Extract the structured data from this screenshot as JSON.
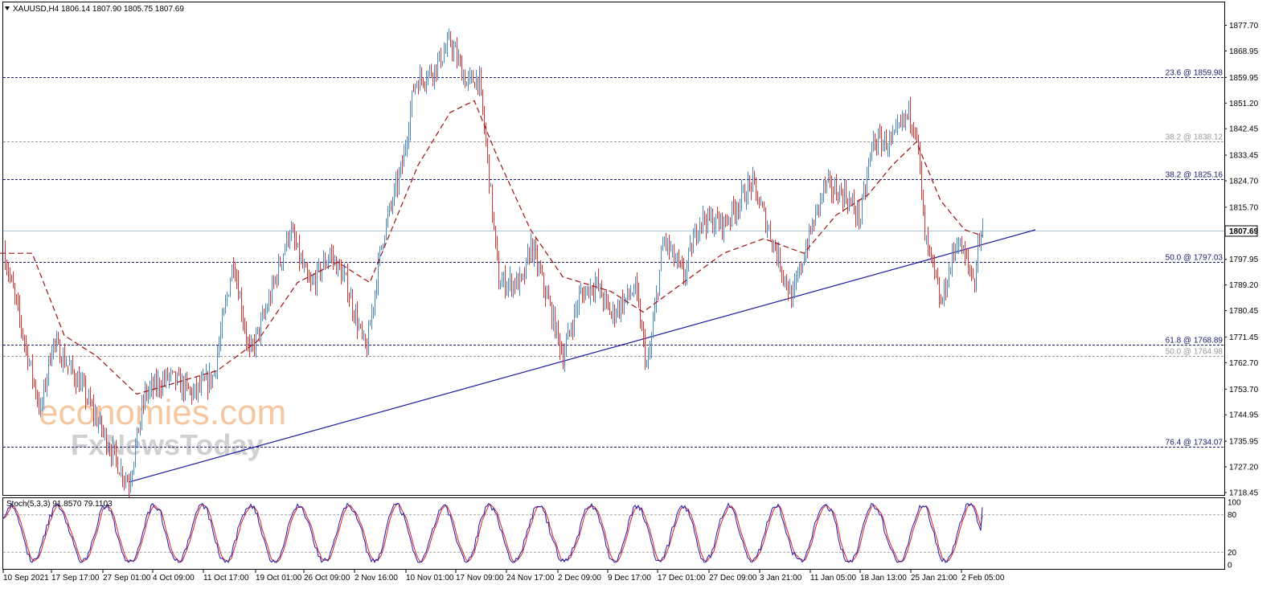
{
  "header": {
    "symbol": "XAUUSD,H4",
    "ohlc": "1806.14 1807.90 1805.75 1807.69"
  },
  "watermark": {
    "line1": "economies.com",
    "line2": "FxNewsToday"
  },
  "price_scale": {
    "ticks": [
      "1877.70",
      "1868.95",
      "1859.95",
      "1851.20",
      "1842.45",
      "1833.45",
      "1824.70",
      "1815.70",
      "1807.69",
      "1797.95",
      "1789.20",
      "1780.45",
      "1771.45",
      "1762.70",
      "1753.70",
      "1744.95",
      "1735.95",
      "1727.20",
      "1718.45"
    ],
    "current_price_label": "1807.69"
  },
  "time_axis": {
    "labels": [
      "10 Sep 2021",
      "17 Sep 17:00",
      "27 Sep 01:00",
      "4 Oct 09:00",
      "11 Oct 17:00",
      "19 Oct 01:00",
      "26 Oct 09:00",
      "2 Nov 16:00",
      "10 Nov 01:00",
      "17 Nov 09:00",
      "24 Nov 17:00",
      "2 Dec 09:00",
      "9 Dec 17:00",
      "17 Dec 01:00",
      "27 Dec 09:00",
      "3 Jan 21:00",
      "11 Jan 05:00",
      "18 Jan 13:00",
      "25 Jan 21:00",
      "2 Feb 05:00"
    ]
  },
  "fib_levels": [
    {
      "label": "23.6 @ 1859.98",
      "price": 1859.98,
      "style": "dark"
    },
    {
      "label": "38.2 @ 1838.12",
      "price": 1838.12,
      "style": "light"
    },
    {
      "label": "38.2 @ 1825.16",
      "price": 1825.16,
      "style": "dark"
    },
    {
      "label": "50.0 @ 1797.03",
      "price": 1797.03,
      "style": "dark"
    },
    {
      "label": "61.8 @ 1768.89",
      "price": 1768.89,
      "style": "dark"
    },
    {
      "label": "50.0 @ 1764.98",
      "price": 1764.98,
      "style": "light"
    },
    {
      "label": "76.4 @ 1734.07",
      "price": 1734.07,
      "style": "dark"
    }
  ],
  "stochastic": {
    "label": "Stoch(5,3,3) 91.8570 79.1103",
    "scale_labels": [
      "100",
      "80",
      "20",
      "0"
    ]
  },
  "colors": {
    "bull": "#4a88cc",
    "bear": "#e03030",
    "ma": "#a01010",
    "trendline": "#1a1aa0",
    "fib_dark": "#1a1a6e",
    "fib_light": "#999999",
    "current_price_line": "#a9c6e0",
    "stoch_main": "#1a1ab0",
    "stoch_signal": "#e02020",
    "watermark_orange": "#f5c7a0",
    "watermark_gray": "#d0d0d0"
  },
  "chart_data": {
    "type": "candlestick",
    "symbol": "XAUUSD,H4",
    "ylim": [
      1718.45,
      1880
    ],
    "current_price": 1807.69,
    "anchors": [
      [
        0,
        1806
      ],
      [
        50,
        1746
      ],
      [
        65,
        1770
      ],
      [
        100,
        1755
      ],
      [
        150,
        1726
      ],
      [
        160,
        1722
      ],
      [
        180,
        1752
      ],
      [
        210,
        1758
      ],
      [
        240,
        1752
      ],
      [
        265,
        1758
      ],
      [
        290,
        1798
      ],
      [
        310,
        1765
      ],
      [
        330,
        1780
      ],
      [
        360,
        1808
      ],
      [
        385,
        1788
      ],
      [
        410,
        1800
      ],
      [
        430,
        1790
      ],
      [
        455,
        1766
      ],
      [
        475,
        1805
      ],
      [
        500,
        1830
      ],
      [
        515,
        1858
      ],
      [
        540,
        1863
      ],
      [
        560,
        1872
      ],
      [
        580,
        1858
      ],
      [
        595,
        1860
      ],
      [
        605,
        1835
      ],
      [
        620,
        1790
      ],
      [
        650,
        1790
      ],
      [
        660,
        1803
      ],
      [
        680,
        1785
      ],
      [
        700,
        1765
      ],
      [
        720,
        1785
      ],
      [
        740,
        1790
      ],
      [
        760,
        1779
      ],
      [
        790,
        1788
      ],
      [
        805,
        1760
      ],
      [
        825,
        1805
      ],
      [
        850,
        1792
      ],
      [
        870,
        1812
      ],
      [
        900,
        1810
      ],
      [
        935,
        1824
      ],
      [
        960,
        1805
      ],
      [
        985,
        1784
      ],
      [
        1000,
        1800
      ],
      [
        1025,
        1823
      ],
      [
        1050,
        1820
      ],
      [
        1070,
        1812
      ],
      [
        1085,
        1838
      ],
      [
        1110,
        1838
      ],
      [
        1130,
        1848
      ],
      [
        1140,
        1842
      ],
      [
        1150,
        1805
      ],
      [
        1160,
        1795
      ],
      [
        1170,
        1782
      ],
      [
        1190,
        1805
      ],
      [
        1205,
        1795
      ],
      [
        1212,
        1790
      ],
      [
        1216,
        1804
      ],
      [
        1222,
        1807.69
      ]
    ],
    "moving_average": [
      [
        0,
        1800
      ],
      [
        40,
        1800
      ],
      [
        80,
        1772
      ],
      [
        120,
        1765
      ],
      [
        170,
        1752
      ],
      [
        220,
        1756
      ],
      [
        270,
        1760
      ],
      [
        320,
        1770
      ],
      [
        370,
        1790
      ],
      [
        420,
        1797
      ],
      [
        460,
        1790
      ],
      [
        490,
        1810
      ],
      [
        520,
        1830
      ],
      [
        560,
        1848
      ],
      [
        590,
        1852
      ],
      [
        620,
        1832
      ],
      [
        660,
        1808
      ],
      [
        700,
        1792
      ],
      [
        760,
        1787
      ],
      [
        800,
        1780
      ],
      [
        850,
        1790
      ],
      [
        900,
        1800
      ],
      [
        950,
        1805
      ],
      [
        1000,
        1800
      ],
      [
        1040,
        1813
      ],
      [
        1080,
        1820
      ],
      [
        1110,
        1830
      ],
      [
        1140,
        1838
      ],
      [
        1170,
        1818
      ],
      [
        1200,
        1808
      ],
      [
        1222,
        1806
      ]
    ],
    "trendline": {
      "from": [
        160,
        1722
      ],
      "to": [
        1288,
        1808
      ]
    },
    "stochastic": {
      "params": "5,3,3",
      "main": 91.857,
      "signal": 79.1103,
      "levels": [
        20,
        80
      ],
      "range": [
        0,
        100
      ]
    }
  }
}
